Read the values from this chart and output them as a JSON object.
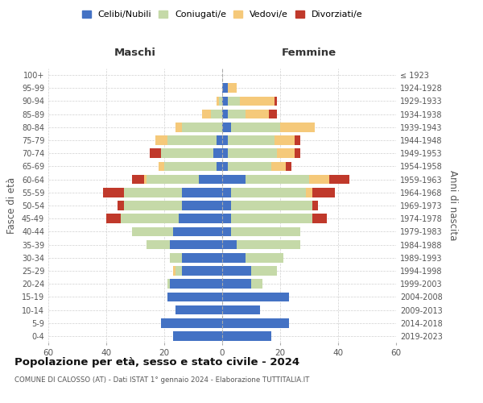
{
  "age_groups": [
    "0-4",
    "5-9",
    "10-14",
    "15-19",
    "20-24",
    "25-29",
    "30-34",
    "35-39",
    "40-44",
    "45-49",
    "50-54",
    "55-59",
    "60-64",
    "65-69",
    "70-74",
    "75-79",
    "80-84",
    "85-89",
    "90-94",
    "95-99",
    "100+"
  ],
  "birth_years": [
    "2019-2023",
    "2014-2018",
    "2009-2013",
    "2004-2008",
    "1999-2003",
    "1994-1998",
    "1989-1993",
    "1984-1988",
    "1979-1983",
    "1974-1978",
    "1969-1973",
    "1964-1968",
    "1959-1963",
    "1954-1958",
    "1949-1953",
    "1944-1948",
    "1939-1943",
    "1934-1938",
    "1929-1933",
    "1924-1928",
    "≤ 1923"
  ],
  "colors": {
    "celibe": "#4472c4",
    "coniugato": "#c5d9a8",
    "vedovo": "#f5c97a",
    "divorziato": "#c0392b"
  },
  "maschi": {
    "celibe": [
      17,
      21,
      16,
      19,
      18,
      14,
      14,
      18,
      17,
      15,
      14,
      14,
      8,
      2,
      3,
      2,
      0,
      0,
      0,
      0,
      0
    ],
    "coniugato": [
      0,
      0,
      0,
      0,
      1,
      2,
      4,
      8,
      14,
      20,
      20,
      20,
      18,
      18,
      18,
      17,
      14,
      4,
      1,
      0,
      0
    ],
    "vedovo": [
      0,
      0,
      0,
      0,
      0,
      1,
      0,
      0,
      0,
      0,
      0,
      0,
      1,
      2,
      0,
      4,
      2,
      3,
      1,
      0,
      0
    ],
    "divorziato": [
      0,
      0,
      0,
      0,
      0,
      0,
      0,
      0,
      0,
      5,
      2,
      7,
      4,
      0,
      4,
      0,
      0,
      0,
      0,
      0,
      0
    ]
  },
  "femmine": {
    "nubile": [
      17,
      23,
      13,
      23,
      10,
      10,
      8,
      5,
      3,
      3,
      3,
      3,
      8,
      2,
      2,
      2,
      3,
      2,
      2,
      2,
      0
    ],
    "coniugata": [
      0,
      0,
      0,
      0,
      4,
      9,
      13,
      22,
      24,
      28,
      28,
      26,
      22,
      15,
      17,
      16,
      17,
      6,
      4,
      0,
      0
    ],
    "vedova": [
      0,
      0,
      0,
      0,
      0,
      0,
      0,
      0,
      0,
      0,
      0,
      2,
      7,
      5,
      6,
      7,
      12,
      8,
      12,
      3,
      0
    ],
    "divorziata": [
      0,
      0,
      0,
      0,
      0,
      0,
      0,
      0,
      0,
      5,
      2,
      8,
      7,
      2,
      2,
      2,
      0,
      3,
      1,
      0,
      0
    ]
  },
  "title": "Popolazione per età, sesso e stato civile - 2024",
  "subtitle": "COMUNE DI CALOSSO (AT) - Dati ISTAT 1° gennaio 2024 - Elaborazione TUTTITALIA.IT",
  "xlabel_left": "Maschi",
  "xlabel_right": "Femmine",
  "ylabel_left": "Fasce di età",
  "ylabel_right": "Anni di nascita",
  "xlim": 60,
  "legend_labels": [
    "Celibi/Nubili",
    "Coniugati/e",
    "Vedovi/e",
    "Divorziati/e"
  ],
  "background_color": "#ffffff",
  "grid_color": "#cccccc"
}
